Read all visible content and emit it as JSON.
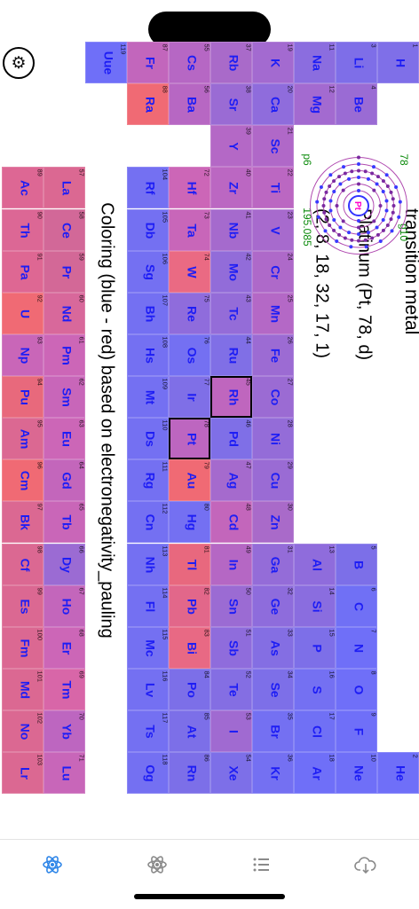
{
  "settings_icon": "gear-icon",
  "detail": {
    "category": "transition metal",
    "name_line": "Platinum (Pt, 78, d)",
    "shells_line": "(2, 8, 18, 32, 17, 1)",
    "atom_symbol": "Pt",
    "atomic_number": "78",
    "period": "p6",
    "group": "g10",
    "mass": "195.085"
  },
  "coloring_label": "Coloring (blue - red) based on electronegativity_pauling",
  "colors": {
    "blue": "#6f6ff8",
    "red": "#f06a74",
    "selected_border": "#000000",
    "green": "#0a8a0a"
  },
  "elements": [
    {
      "n": "1",
      "s": "H",
      "c": "#7f6fe8",
      "r": 0,
      "col": 0
    },
    {
      "n": "2",
      "s": "He",
      "c": "#6f6ff8",
      "r": 0,
      "col": 17
    },
    {
      "n": "3",
      "s": "Li",
      "c": "#7e6ee8",
      "r": 1,
      "col": 0
    },
    {
      "n": "4",
      "s": "Be",
      "c": "#9a6bd4",
      "r": 1,
      "col": 1
    },
    {
      "n": "5",
      "s": "B",
      "c": "#7c6fe8",
      "r": 1,
      "col": 12
    },
    {
      "n": "6",
      "s": "C",
      "c": "#7070f5",
      "r": 1,
      "col": 13
    },
    {
      "n": "7",
      "s": "N",
      "c": "#6f6ff8",
      "r": 1,
      "col": 14
    },
    {
      "n": "8",
      "s": "O",
      "c": "#6f6ff8",
      "r": 1,
      "col": 15
    },
    {
      "n": "9",
      "s": "F",
      "c": "#6f6ff8",
      "r": 1,
      "col": 16
    },
    {
      "n": "10",
      "s": "Ne",
      "c": "#6f6ff8",
      "r": 1,
      "col": 17
    },
    {
      "n": "11",
      "s": "Na",
      "c": "#8b6ddf",
      "r": 2,
      "col": 0
    },
    {
      "n": "12",
      "s": "Mg",
      "c": "#a36ad0",
      "r": 2,
      "col": 1
    },
    {
      "n": "13",
      "s": "Al",
      "c": "#8f6cdc",
      "r": 2,
      "col": 12
    },
    {
      "n": "14",
      "s": "Si",
      "c": "#8a6ddf",
      "r": 2,
      "col": 13
    },
    {
      "n": "15",
      "s": "P",
      "c": "#7d6fe8",
      "r": 2,
      "col": 14
    },
    {
      "n": "16",
      "s": "S",
      "c": "#7470f2",
      "r": 2,
      "col": 15
    },
    {
      "n": "17",
      "s": "Cl",
      "c": "#7070f5",
      "r": 2,
      "col": 16
    },
    {
      "n": "18",
      "s": "Ar",
      "c": "#6f6ff8",
      "r": 2,
      "col": 17
    },
    {
      "n": "19",
      "s": "K",
      "c": "#a36ad0",
      "r": 3,
      "col": 0
    },
    {
      "n": "20",
      "s": "Ca",
      "c": "#8f6cdc",
      "r": 3,
      "col": 1
    },
    {
      "n": "21",
      "s": "Sc",
      "c": "#b068c8",
      "r": 3,
      "col": 2
    },
    {
      "n": "22",
      "s": "Ti",
      "c": "#bb67c2",
      "r": 3,
      "col": 3
    },
    {
      "n": "23",
      "s": "V",
      "c": "#a76acd",
      "r": 3,
      "col": 4
    },
    {
      "n": "24",
      "s": "Cr",
      "c": "#ae69c9",
      "r": 3,
      "col": 5
    },
    {
      "n": "25",
      "s": "Mn",
      "c": "#b468c6",
      "r": 3,
      "col": 6
    },
    {
      "n": "26",
      "s": "Fe",
      "c": "#9c6bd3",
      "r": 3,
      "col": 7
    },
    {
      "n": "27",
      "s": "Co",
      "c": "#9b6bd3",
      "r": 3,
      "col": 8
    },
    {
      "n": "28",
      "s": "Ni",
      "c": "#946cd8",
      "r": 3,
      "col": 9
    },
    {
      "n": "29",
      "s": "Cu",
      "c": "#9a6bd4",
      "r": 3,
      "col": 10
    },
    {
      "n": "30",
      "s": "Zn",
      "c": "#a96ac9",
      "r": 3,
      "col": 11
    },
    {
      "n": "31",
      "s": "Ga",
      "c": "#946cd8",
      "r": 3,
      "col": 12
    },
    {
      "n": "32",
      "s": "Ge",
      "c": "#8e6cdc",
      "r": 3,
      "col": 13
    },
    {
      "n": "33",
      "s": "As",
      "c": "#846ee3",
      "r": 3,
      "col": 14
    },
    {
      "n": "34",
      "s": "Se",
      "c": "#7d6fe8",
      "r": 3,
      "col": 15
    },
    {
      "n": "35",
      "s": "Br",
      "c": "#7470f2",
      "r": 3,
      "col": 16
    },
    {
      "n": "36",
      "s": "Kr",
      "c": "#7470f2",
      "r": 3,
      "col": 17
    },
    {
      "n": "37",
      "s": "Rb",
      "c": "#a96ac9",
      "r": 4,
      "col": 0
    },
    {
      "n": "38",
      "s": "Sr",
      "c": "#9a6bd4",
      "r": 4,
      "col": 1
    },
    {
      "n": "39",
      "s": "Y",
      "c": "#b468c6",
      "r": 4,
      "col": 2
    },
    {
      "n": "40",
      "s": "Zr",
      "c": "#bb67c2",
      "r": 4,
      "col": 3
    },
    {
      "n": "41",
      "s": "Nb",
      "c": "#a56acd",
      "r": 4,
      "col": 4
    },
    {
      "n": "42",
      "s": "Mo",
      "c": "#926cd9",
      "r": 4,
      "col": 5
    },
    {
      "n": "43",
      "s": "Tc",
      "c": "#946cd8",
      "r": 4,
      "col": 6
    },
    {
      "n": "44",
      "s": "Ru",
      "c": "#806fe6",
      "r": 4,
      "col": 7
    },
    {
      "n": "45",
      "s": "Rh",
      "c": "#bf66be",
      "r": 4,
      "col": 8
    },
    {
      "n": "46",
      "s": "Pd",
      "c": "#7f6fe7",
      "r": 4,
      "col": 9
    },
    {
      "n": "47",
      "s": "Ag",
      "c": "#a56acd",
      "r": 4,
      "col": 10
    },
    {
      "n": "48",
      "s": "Cd",
      "c": "#c366bb",
      "r": 4,
      "col": 11
    },
    {
      "n": "49",
      "s": "In",
      "c": "#b567c4",
      "r": 4,
      "col": 12
    },
    {
      "n": "50",
      "s": "Sn",
      "c": "#9b6bd3",
      "r": 4,
      "col": 13
    },
    {
      "n": "51",
      "s": "Sb",
      "c": "#8f6cdc",
      "r": 4,
      "col": 14
    },
    {
      "n": "52",
      "s": "Te",
      "c": "#846ee3",
      "r": 4,
      "col": 15
    },
    {
      "n": "53",
      "s": "I",
      "c": "#a06ad1",
      "r": 4,
      "col": 16
    },
    {
      "n": "54",
      "s": "Xe",
      "c": "#7d6fe8",
      "r": 4,
      "col": 17
    },
    {
      "n": "55",
      "s": "Cs",
      "c": "#b667c4",
      "r": 5,
      "col": 0
    },
    {
      "n": "56",
      "s": "Ba",
      "c": "#b767c3",
      "r": 5,
      "col": 1
    },
    {
      "n": "72",
      "s": "Hf",
      "c": "#cc66b7",
      "r": 5,
      "col": 3
    },
    {
      "n": "73",
      "s": "Ta",
      "c": "#c866b9",
      "r": 5,
      "col": 4
    },
    {
      "n": "74",
      "s": "W",
      "c": "#ea6a83",
      "r": 5,
      "col": 5
    },
    {
      "n": "75",
      "s": "Re",
      "c": "#8f6cdc",
      "r": 5,
      "col": 6
    },
    {
      "n": "76",
      "s": "Os",
      "c": "#7470f2",
      "r": 5,
      "col": 7
    },
    {
      "n": "77",
      "s": "Ir",
      "c": "#7f6fe7",
      "r": 5,
      "col": 8
    },
    {
      "n": "78",
      "s": "Pt",
      "c": "#bd66c0",
      "r": 5,
      "col": 9
    },
    {
      "n": "79",
      "s": "Au",
      "c": "#f06a74",
      "r": 5,
      "col": 10
    },
    {
      "n": "80",
      "s": "Hg",
      "c": "#7470f2",
      "r": 5,
      "col": 11
    },
    {
      "n": "81",
      "s": "Tl",
      "c": "#e8687e",
      "r": 5,
      "col": 12
    },
    {
      "n": "82",
      "s": "Pb",
      "c": "#e2678a",
      "r": 5,
      "col": 13
    },
    {
      "n": "83",
      "s": "Bi",
      "c": "#e86984",
      "r": 5,
      "col": 14
    },
    {
      "n": "84",
      "s": "Po",
      "c": "#7c6fe8",
      "r": 5,
      "col": 15
    },
    {
      "n": "85",
      "s": "At",
      "c": "#7c6fe8",
      "r": 5,
      "col": 16
    },
    {
      "n": "86",
      "s": "Rn",
      "c": "#7c6fe8",
      "r": 5,
      "col": 17
    },
    {
      "n": "87",
      "s": "Fr",
      "c": "#c266bc",
      "r": 6,
      "col": 0
    },
    {
      "n": "88",
      "s": "Ra",
      "c": "#f06a74",
      "r": 6,
      "col": 1
    },
    {
      "n": "104",
      "s": "Rf",
      "c": "#7470f2",
      "r": 6,
      "col": 3
    },
    {
      "n": "105",
      "s": "Db",
      "c": "#7470f2",
      "r": 6,
      "col": 4
    },
    {
      "n": "106",
      "s": "Sg",
      "c": "#7470f2",
      "r": 6,
      "col": 5
    },
    {
      "n": "107",
      "s": "Bh",
      "c": "#7470f2",
      "r": 6,
      "col": 6
    },
    {
      "n": "108",
      "s": "Hs",
      "c": "#7470f2",
      "r": 6,
      "col": 7
    },
    {
      "n": "109",
      "s": "Mt",
      "c": "#7470f2",
      "r": 6,
      "col": 8
    },
    {
      "n": "110",
      "s": "Ds",
      "c": "#7470f2",
      "r": 6,
      "col": 9
    },
    {
      "n": "111",
      "s": "Rg",
      "c": "#7470f2",
      "r": 6,
      "col": 10
    },
    {
      "n": "112",
      "s": "Cn",
      "c": "#7470f2",
      "r": 6,
      "col": 11
    },
    {
      "n": "113",
      "s": "Nh",
      "c": "#7470f2",
      "r": 6,
      "col": 12
    },
    {
      "n": "114",
      "s": "Fl",
      "c": "#7470f2",
      "r": 6,
      "col": 13
    },
    {
      "n": "115",
      "s": "Mc",
      "c": "#7470f2",
      "r": 6,
      "col": 14
    },
    {
      "n": "116",
      "s": "Lv",
      "c": "#7470f2",
      "r": 6,
      "col": 15
    },
    {
      "n": "117",
      "s": "Ts",
      "c": "#7470f2",
      "r": 6,
      "col": 16
    },
    {
      "n": "118",
      "s": "Og",
      "c": "#7470f2",
      "r": 6,
      "col": 17
    },
    {
      "n": "119",
      "s": "Uue",
      "c": "#6f6ff8",
      "r": 7,
      "col": 0
    },
    {
      "n": "57",
      "s": "La",
      "c": "#db6892",
      "r": 8,
      "col": 3
    },
    {
      "n": "58",
      "s": "Ce",
      "c": "#d26898",
      "r": 8,
      "col": 4
    },
    {
      "n": "59",
      "s": "Pr",
      "c": "#d36897",
      "r": 8,
      "col": 5
    },
    {
      "n": "60",
      "s": "Nd",
      "c": "#d8689b",
      "r": 8,
      "col": 6
    },
    {
      "n": "61",
      "s": "Pm",
      "c": "#cc66b7",
      "r": 8,
      "col": 7
    },
    {
      "n": "62",
      "s": "Sm",
      "c": "#c866b9",
      "r": 8,
      "col": 8
    },
    {
      "n": "63",
      "s": "Eu",
      "c": "#cc66b7",
      "r": 8,
      "col": 9
    },
    {
      "n": "64",
      "s": "Gd",
      "c": "#c366bb",
      "r": 8,
      "col": 10
    },
    {
      "n": "65",
      "s": "Tb",
      "c": "#c966b8",
      "r": 8,
      "col": 11
    },
    {
      "n": "66",
      "s": "Dy",
      "c": "#9b6bd3",
      "r": 8,
      "col": 12
    },
    {
      "n": "67",
      "s": "Ho",
      "c": "#c366bb",
      "r": 8,
      "col": 13
    },
    {
      "n": "68",
      "s": "Er",
      "c": "#cc66b7",
      "r": 8,
      "col": 14
    },
    {
      "n": "69",
      "s": "Tm",
      "c": "#d866a8",
      "r": 8,
      "col": 15
    },
    {
      "n": "70",
      "s": "Yb",
      "c": "#bd66c0",
      "r": 8,
      "col": 16
    },
    {
      "n": "71",
      "s": "Lu",
      "c": "#c866b9",
      "r": 8,
      "col": 17
    },
    {
      "n": "89",
      "s": "Ac",
      "c": "#dd6794",
      "r": 9,
      "col": 3
    },
    {
      "n": "90",
      "s": "Th",
      "c": "#dc6795",
      "r": 9,
      "col": 4
    },
    {
      "n": "91",
      "s": "Pa",
      "c": "#de6793",
      "r": 9,
      "col": 5
    },
    {
      "n": "92",
      "s": "U",
      "c": "#f06a74",
      "r": 9,
      "col": 6
    },
    {
      "n": "93",
      "s": "Np",
      "c": "#c966b8",
      "r": 9,
      "col": 7
    },
    {
      "n": "94",
      "s": "Pu",
      "c": "#e8697c",
      "r": 9,
      "col": 8
    },
    {
      "n": "95",
      "s": "Am",
      "c": "#db6892",
      "r": 9,
      "col": 9
    },
    {
      "n": "96",
      "s": "Cm",
      "c": "#f06a74",
      "r": 9,
      "col": 10
    },
    {
      "n": "97",
      "s": "Bk",
      "c": "#db6892",
      "r": 9,
      "col": 11
    },
    {
      "n": "98",
      "s": "Cf",
      "c": "#db6892",
      "r": 9,
      "col": 12
    },
    {
      "n": "99",
      "s": "Es",
      "c": "#db6892",
      "r": 9,
      "col": 13
    },
    {
      "n": "100",
      "s": "Fm",
      "c": "#db6892",
      "r": 9,
      "col": 14
    },
    {
      "n": "101",
      "s": "Md",
      "c": "#db6892",
      "r": 9,
      "col": 15
    },
    {
      "n": "102",
      "s": "No",
      "c": "#db6892",
      "r": 9,
      "col": 16
    },
    {
      "n": "103",
      "s": "Lr",
      "c": "#db6892",
      "r": 9,
      "col": 17
    }
  ],
  "selected_elements": [
    "45",
    "78"
  ],
  "tabs": [
    {
      "icon": "atom-outline-icon",
      "active": true
    },
    {
      "icon": "atom-icon",
      "active": false
    },
    {
      "icon": "list-icon",
      "active": false
    },
    {
      "icon": "cloud-download-icon",
      "active": false
    }
  ]
}
